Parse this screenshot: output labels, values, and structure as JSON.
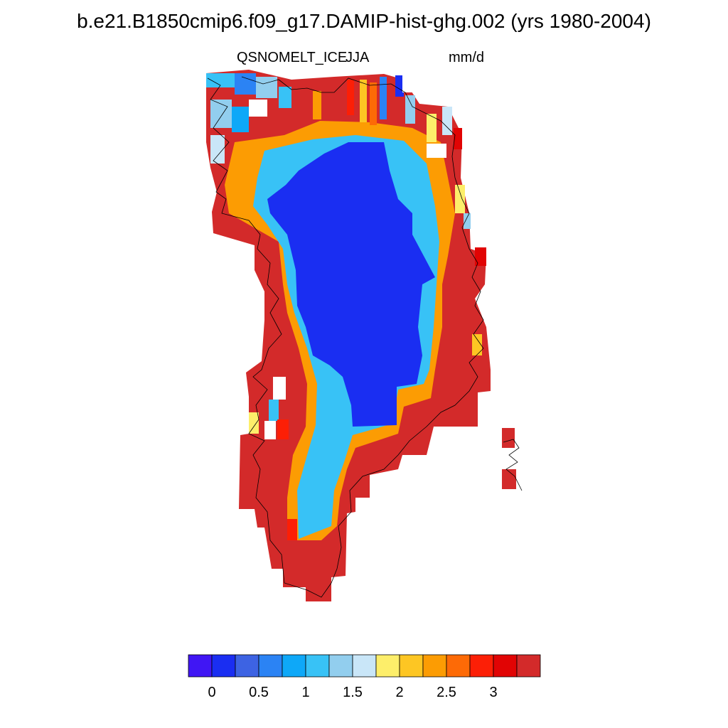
{
  "title": "b.e21.B1850cmip6.f09_g17.DAMIP-hist-ghg.002 (yrs 1980-2004)",
  "variable": "QSNOMELT_ICE",
  "season": "JJA",
  "units": "mm/d",
  "colorbar": {
    "colors": [
      "#4016f4",
      "#1a2ef2",
      "#3d63e3",
      "#2b83f4",
      "#0ea8f8",
      "#38c2f6",
      "#92ceee",
      "#c9e6f8",
      "#fdee6a",
      "#fdc623",
      "#fc9c03",
      "#fd6a06",
      "#fc1f06",
      "#e10404",
      "#d32a2a"
    ],
    "tick_labels": [
      "0",
      "0.5",
      "1",
      "1.5",
      "2",
      "2.5",
      "3"
    ]
  },
  "legend_colors": {
    "low": "#1a2ef2",
    "high": "#d32a2a"
  }
}
